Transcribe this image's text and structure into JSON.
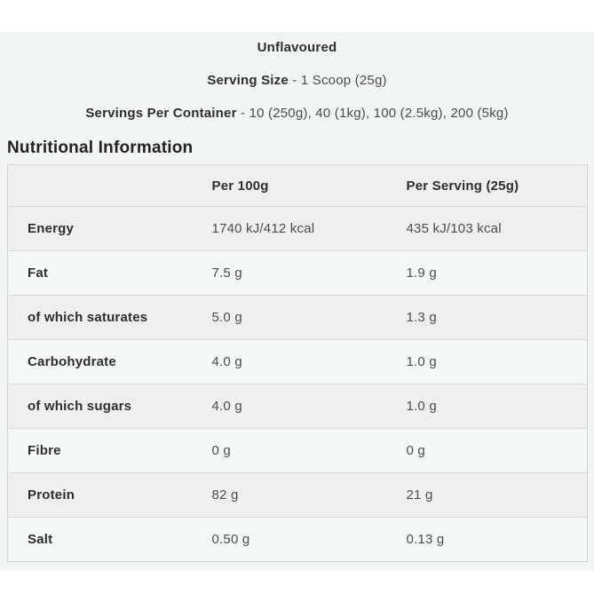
{
  "colors": {
    "page_background": "#ffffff",
    "panel_background": "#f1f6f5",
    "row_gray": "#f0efed",
    "row_mint": "#f4f9f8",
    "border": "#d2d2cf",
    "text_dark": "#2e2e2e",
    "text_muted": "#4c4c4c"
  },
  "header": {
    "flavour": "Unflavoured",
    "serving_size_label": "Serving Size",
    "serving_size_value": "- 1 Scoop (25g)",
    "servings_per_container_label": "Servings Per Container",
    "servings_per_container_value": "- 10 (250g), 40 (1kg), 100 (2.5kg), 200 (5kg)"
  },
  "section_title": "Nutritional Information",
  "table": {
    "columns": [
      "",
      "Per 100g",
      "Per Serving (25g)"
    ],
    "rows": [
      {
        "label": "Energy",
        "per_100g": "1740 kJ/412 kcal",
        "per_serving": "435 kJ/103 kcal"
      },
      {
        "label": "Fat",
        "per_100g": "7.5 g",
        "per_serving": "1.9 g"
      },
      {
        "label": "of which saturates",
        "per_100g": "5.0 g",
        "per_serving": "1.3 g"
      },
      {
        "label": "Carbohydrate",
        "per_100g": "4.0 g",
        "per_serving": "1.0 g"
      },
      {
        "label": "of which sugars",
        "per_100g": "4.0 g",
        "per_serving": "1.0 g"
      },
      {
        "label": "Fibre",
        "per_100g": "0 g",
        "per_serving": "0 g"
      },
      {
        "label": "Protein",
        "per_100g": "82 g",
        "per_serving": "21 g"
      },
      {
        "label": "Salt",
        "per_100g": "0.50 g",
        "per_serving": "0.13 g"
      }
    ]
  }
}
